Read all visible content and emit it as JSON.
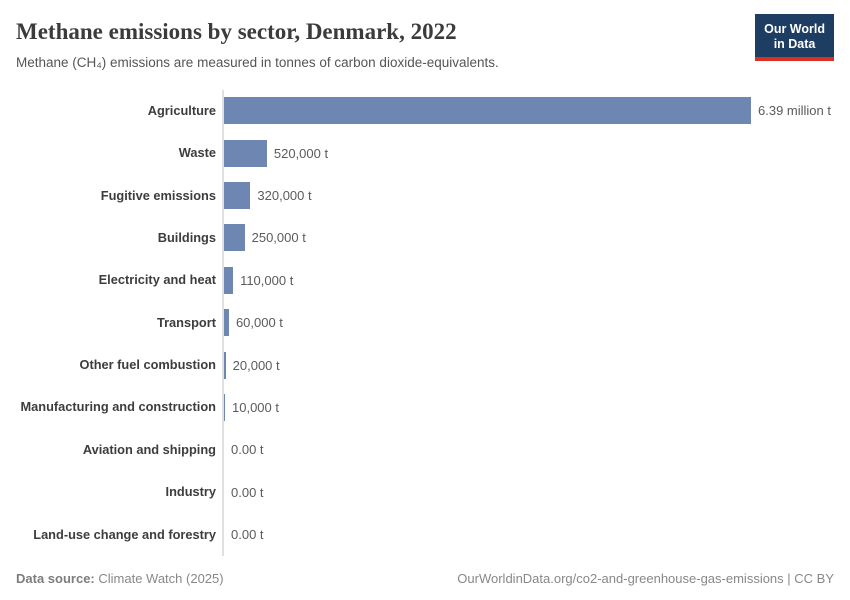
{
  "header": {
    "title": "Methane emissions by sector, Denmark, 2022",
    "subtitle": "Methane (CH₄) emissions are measured in tonnes of carbon dioxide-equivalents.",
    "logo": {
      "line1": "Our World",
      "line2": "in Data"
    }
  },
  "chart_data": {
    "type": "bar",
    "orientation": "horizontal",
    "title": "Methane emissions by sector, Denmark, 2022",
    "unit": "tonnes of carbon dioxide-equivalents",
    "categories": [
      "Agriculture",
      "Waste",
      "Fugitive emissions",
      "Buildings",
      "Electricity and heat",
      "Transport",
      "Other fuel combustion",
      "Manufacturing and construction",
      "Aviation and shipping",
      "Industry",
      "Land-use change and forestry"
    ],
    "values": [
      6390000,
      520000,
      320000,
      250000,
      110000,
      60000,
      20000,
      10000,
      0,
      0,
      0
    ],
    "value_labels": [
      "6.39 million t",
      "520,000 t",
      "320,000 t",
      "250,000 t",
      "110,000 t",
      "60,000 t",
      "20,000 t",
      "10,000 t",
      "0.00 t",
      "0.00 t",
      "0.00 t"
    ],
    "xlim": [
      0,
      6390000
    ],
    "grid": false,
    "legend": "none",
    "bar_color": "#6e87b2",
    "axis_color": "#e0e0e0",
    "label_color": "#3d3d3d",
    "value_color": "#5b5b5b"
  },
  "footer": {
    "source_label": "Data source:",
    "source_value": " Climate Watch (2025)",
    "right_text": "OurWorldinData.org/co2-and-greenhouse-gas-emissions | CC BY"
  }
}
